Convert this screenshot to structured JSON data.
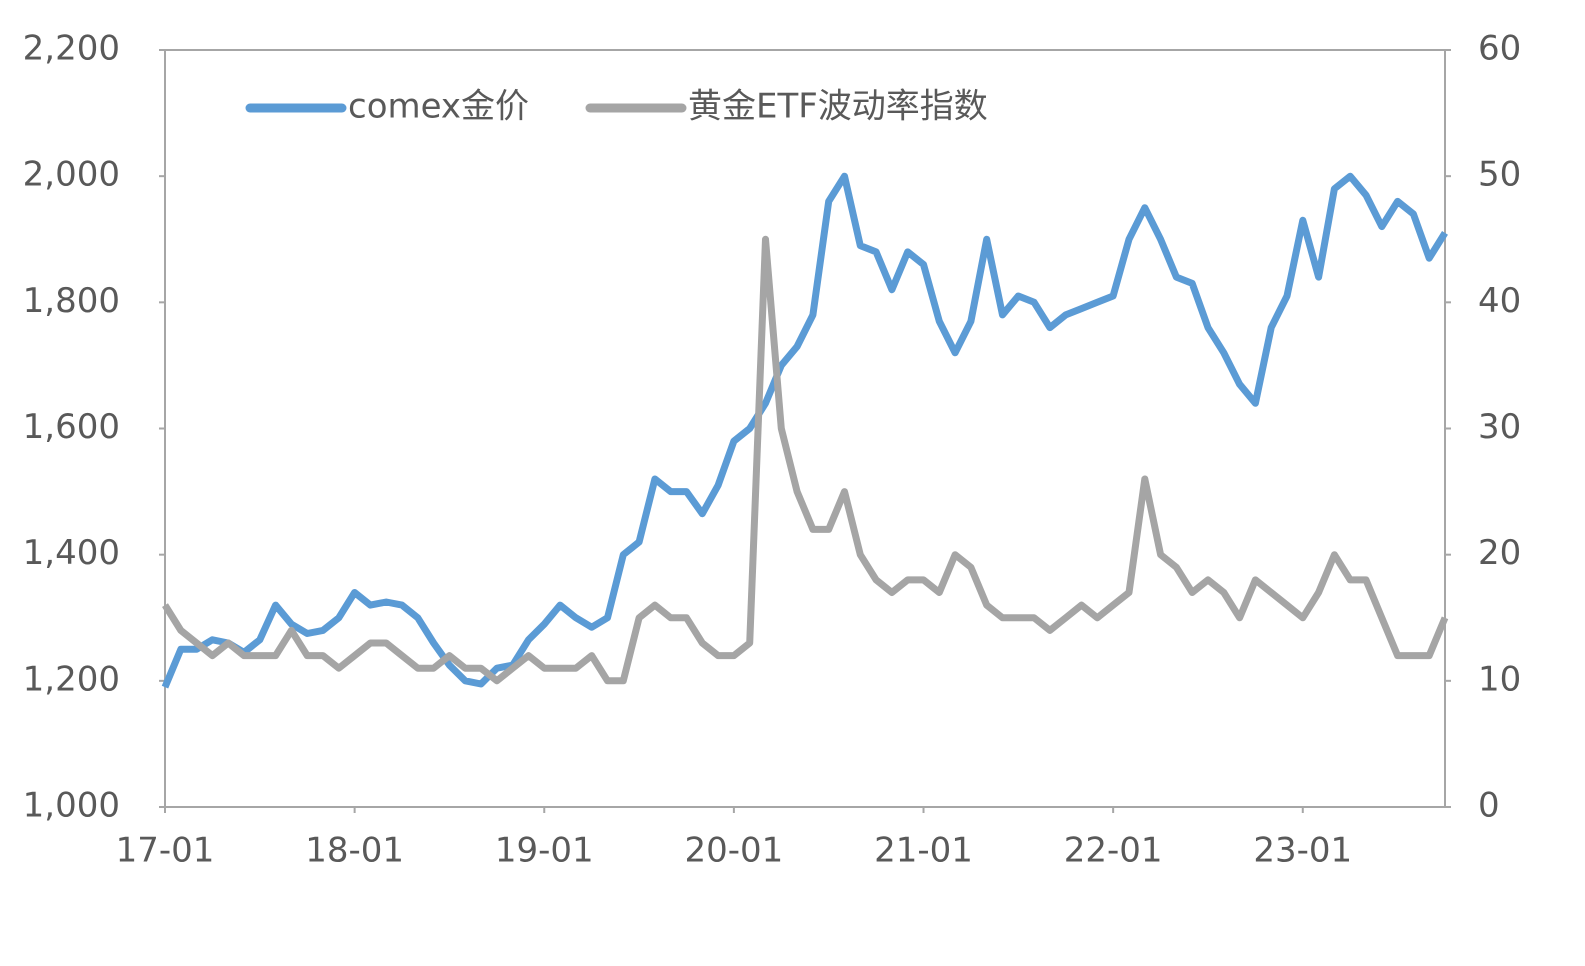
{
  "chart_data": {
    "type": "line",
    "x": [
      "17-01",
      "17-02",
      "17-03",
      "17-04",
      "17-05",
      "17-06",
      "17-07",
      "17-08",
      "17-09",
      "17-10",
      "17-11",
      "17-12",
      "18-01",
      "18-02",
      "18-03",
      "18-04",
      "18-05",
      "18-06",
      "18-07",
      "18-08",
      "18-09",
      "18-10",
      "18-11",
      "18-12",
      "19-01",
      "19-02",
      "19-03",
      "19-04",
      "19-05",
      "19-06",
      "19-07",
      "19-08",
      "19-09",
      "19-10",
      "19-11",
      "19-12",
      "20-01",
      "20-02",
      "20-03",
      "20-04",
      "20-05",
      "20-06",
      "20-07",
      "20-08",
      "20-09",
      "20-10",
      "20-11",
      "20-12",
      "21-01",
      "21-02",
      "21-03",
      "21-04",
      "21-05",
      "21-06",
      "21-07",
      "21-08",
      "21-09",
      "21-10",
      "21-11",
      "21-12",
      "22-01",
      "22-02",
      "22-03",
      "22-04",
      "22-05",
      "22-06",
      "22-07",
      "22-08",
      "22-09",
      "22-10",
      "22-11",
      "22-12",
      "23-01",
      "23-02",
      "23-03",
      "23-04",
      "23-05",
      "23-06",
      "23-07",
      "23-08",
      "23-09",
      "23-10"
    ],
    "xticks": [
      "17-01",
      "18-01",
      "19-01",
      "20-01",
      "21-01",
      "22-01",
      "23-01"
    ],
    "series": [
      {
        "name": "comex金价",
        "color": "#5b9bd5",
        "axis": "y",
        "values": [
          1190,
          1250,
          1250,
          1265,
          1260,
          1245,
          1265,
          1320,
          1290,
          1275,
          1280,
          1300,
          1340,
          1320,
          1325,
          1320,
          1300,
          1260,
          1225,
          1200,
          1195,
          1220,
          1225,
          1265,
          1290,
          1320,
          1300,
          1285,
          1300,
          1400,
          1420,
          1520,
          1500,
          1500,
          1465,
          1510,
          1580,
          1600,
          1640,
          1700,
          1730,
          1780,
          1960,
          2000,
          1890,
          1880,
          1820,
          1880,
          1860,
          1770,
          1720,
          1770,
          1900,
          1780,
          1810,
          1800,
          1760,
          1780,
          1790,
          1800,
          1810,
          1900,
          1950,
          1900,
          1840,
          1830,
          1760,
          1720,
          1670,
          1640,
          1760,
          1810,
          1930,
          1840,
          1980,
          2000,
          1970,
          1920,
          1960,
          1940,
          1870,
          1910
        ]
      },
      {
        "name": "黄金ETF波动率指数",
        "color": "#a5a5a5",
        "axis": "y2",
        "values": [
          16,
          14,
          13,
          12,
          13,
          12,
          12,
          12,
          14,
          12,
          12,
          11,
          12,
          13,
          13,
          12,
          11,
          11,
          12,
          11,
          11,
          10,
          11,
          12,
          11,
          11,
          11,
          12,
          10,
          10,
          15,
          16,
          15,
          15,
          13,
          12,
          12,
          13,
          45,
          30,
          25,
          22,
          22,
          25,
          20,
          18,
          17,
          18,
          18,
          17,
          20,
          19,
          16,
          15,
          15,
          15,
          14,
          15,
          16,
          15,
          16,
          17,
          26,
          20,
          19,
          17,
          18,
          17,
          15,
          18,
          17,
          16,
          15,
          17,
          20,
          18,
          18,
          15,
          12,
          12,
          12,
          15
        ]
      }
    ],
    "ylim": [
      1000,
      2200
    ],
    "yticks": [
      {
        "value": 1000,
        "label": "1,000"
      },
      {
        "value": 1200,
        "label": "1,200"
      },
      {
        "value": 1400,
        "label": "1,400"
      },
      {
        "value": 1600,
        "label": "1,600"
      },
      {
        "value": 1800,
        "label": "1,800"
      },
      {
        "value": 2000,
        "label": "2,000"
      },
      {
        "value": 2200,
        "label": "2,200"
      }
    ],
    "y2lim": [
      0,
      60
    ],
    "y2ticks": [
      0,
      10,
      20,
      30,
      40,
      50,
      60
    ],
    "grid": false,
    "legend": "top-left"
  }
}
